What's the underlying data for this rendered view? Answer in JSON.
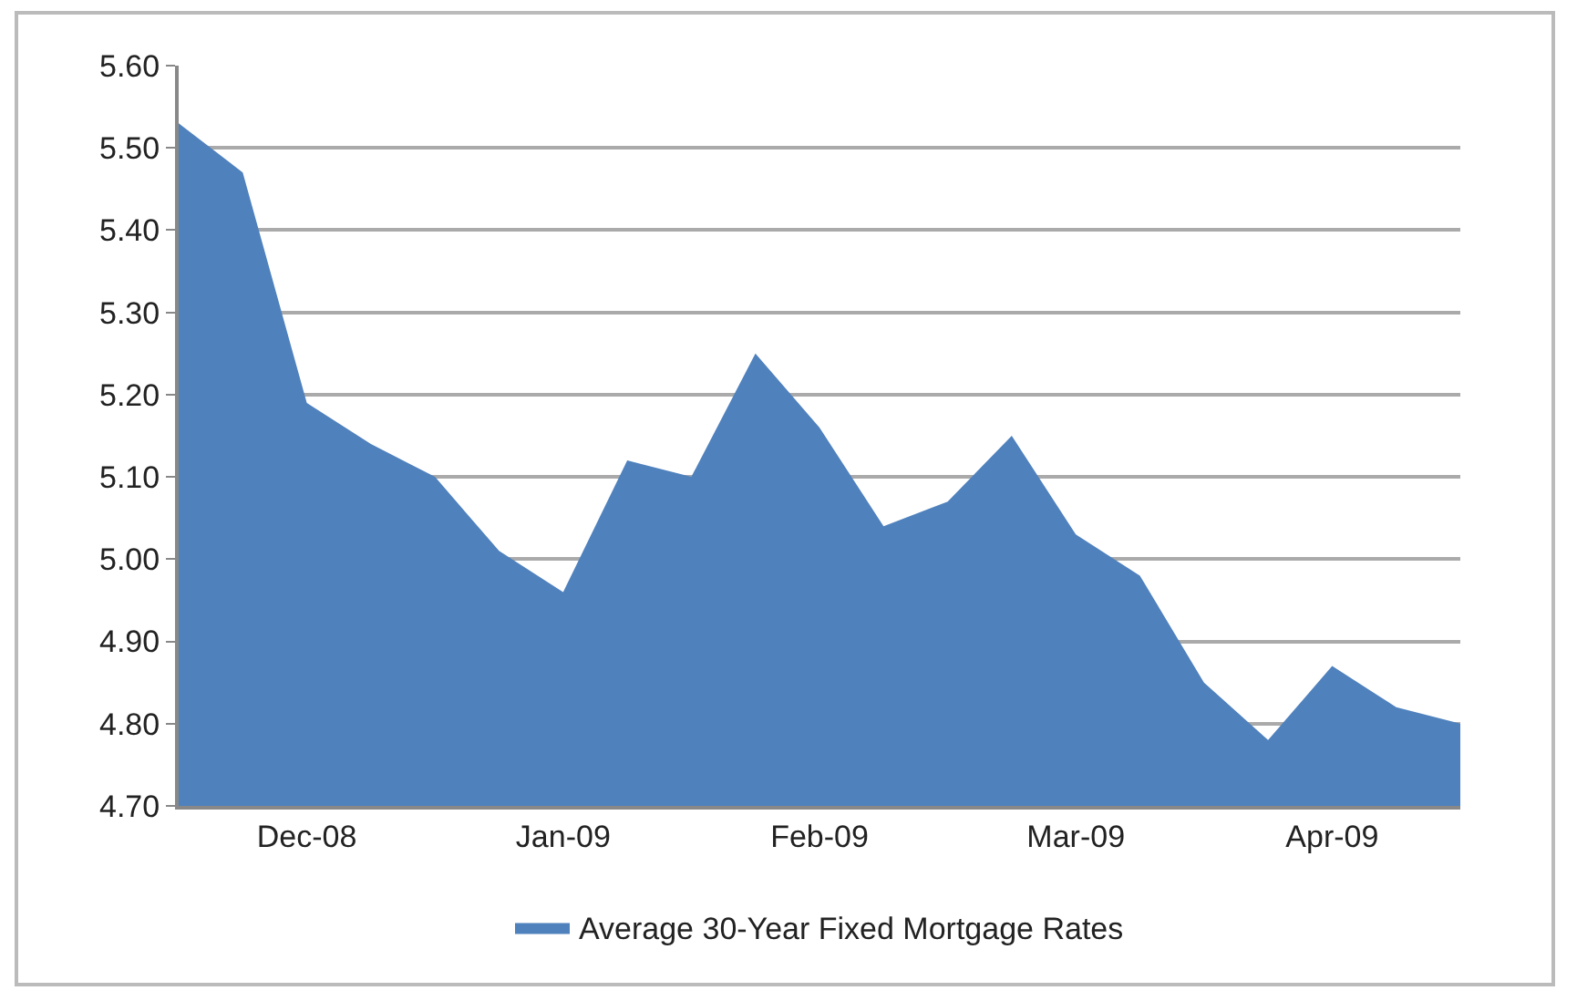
{
  "chart_data": {
    "type": "area",
    "categories": [
      null,
      null,
      "Dec-08",
      null,
      null,
      null,
      "Jan-09",
      null,
      null,
      null,
      "Feb-09",
      null,
      null,
      null,
      "Mar-09",
      null,
      null,
      null,
      "Apr-09",
      null,
      null
    ],
    "series": [
      {
        "name": "Average 30-Year Fixed Mortgage Rates",
        "color": "#4f81bd",
        "values": [
          5.53,
          5.47,
          5.19,
          5.14,
          5.1,
          5.01,
          4.96,
          5.12,
          5.1,
          5.25,
          5.16,
          5.04,
          5.07,
          5.15,
          5.03,
          4.98,
          4.85,
          4.78,
          4.87,
          4.82,
          4.8
        ]
      }
    ],
    "ylim": [
      4.7,
      5.6
    ],
    "yticks": [
      {
        "value": 4.7,
        "label": "4.70"
      },
      {
        "value": 4.8,
        "label": "4.80"
      },
      {
        "value": 4.9,
        "label": "4.90"
      },
      {
        "value": 5.0,
        "label": "5.00"
      },
      {
        "value": 5.1,
        "label": "5.10"
      },
      {
        "value": 5.2,
        "label": "5.20"
      },
      {
        "value": 5.3,
        "label": "5.30"
      },
      {
        "value": 5.4,
        "label": "5.40"
      },
      {
        "value": 5.5,
        "label": "5.50"
      },
      {
        "value": 5.6,
        "label": "5.60"
      }
    ],
    "grid": "y",
    "legend": "bottom"
  }
}
